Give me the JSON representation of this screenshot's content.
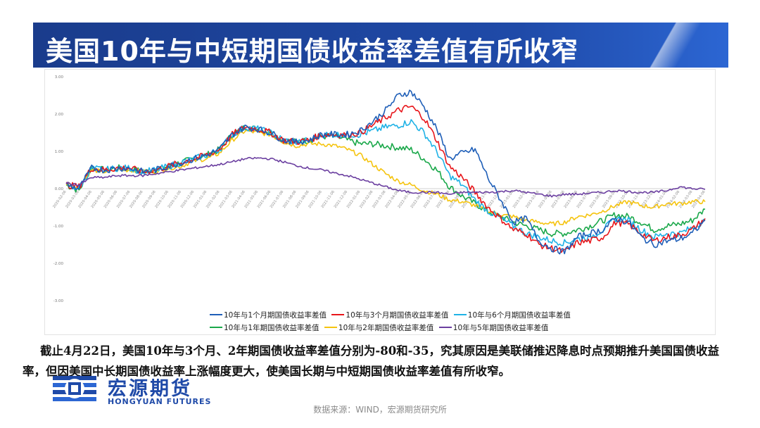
{
  "header": {
    "title": "美国10年与中短期国债收益率差值有所收窄"
  },
  "colors": {
    "title_bar": "#1f4aa8",
    "series": [
      "#1f5fb8",
      "#e8161b",
      "#1fb2e6",
      "#1aa84a",
      "#f5c40f",
      "#6b3fa0"
    ]
  },
  "chart_data": {
    "type": "line",
    "y_ticks": [
      "3.00",
      "2.00",
      "1.00",
      "0.00",
      "-1.00",
      "-2.00",
      "-3.00"
    ],
    "ylim": [
      -3,
      3
    ],
    "x_ticks": [
      "2020-02-06",
      "2020-03-06",
      "2020-04-06",
      "2020-05-06",
      "2020-06-06",
      "2020-07-06",
      "2020-08-06",
      "2020-09-06",
      "2020-10-06",
      "2020-11-06",
      "2020-12-06",
      "2021-01-06",
      "2021-02-06",
      "2021-03-06",
      "2021-04-06",
      "2021-05-06",
      "2021-06-06",
      "2021-07-06",
      "2021-08-06",
      "2021-09-06",
      "2021-10-06",
      "2021-11-06",
      "2021-12-06",
      "2022-01-06",
      "2022-02-06",
      "2022-03-06",
      "2022-04-06",
      "2022-05-06",
      "2022-06-06",
      "2022-07-06",
      "2022-08-06",
      "2022-09-06",
      "2022-10-06",
      "2022-11-06",
      "2022-12-06",
      "2023-01-06",
      "2023-02-06",
      "2023-03-06",
      "2023-04-06",
      "2023-05-06",
      "2023-06-06",
      "2023-07-06",
      "2023-08-06",
      "2023-09-06",
      "2023-10-06",
      "2023-11-06",
      "2023-12-06",
      "2024-01-06",
      "2024-02-06",
      "2024-03-06",
      "2024-04-06"
    ],
    "series": [
      {
        "name": "10年与1个月期国债收益率差值",
        "values": [
          0.1,
          0.0,
          0.55,
          0.5,
          0.55,
          0.55,
          0.45,
          0.5,
          0.6,
          0.7,
          0.8,
          0.9,
          1.05,
          1.45,
          1.65,
          1.6,
          1.5,
          1.3,
          1.25,
          1.3,
          1.45,
          1.45,
          1.45,
          1.55,
          1.8,
          2.1,
          2.5,
          2.6,
          2.2,
          1.6,
          0.8,
          0.95,
          1.05,
          0.3,
          -0.3,
          -0.9,
          -0.8,
          -1.4,
          -1.6,
          -1.7,
          -1.3,
          -1.2,
          -1.1,
          -0.8,
          -0.9,
          -1.3,
          -1.5,
          -1.4,
          -1.35,
          -1.2,
          -0.85
        ]
      },
      {
        "name": "10年与3个月期国债收益率差值",
        "values": [
          0.1,
          0.05,
          0.55,
          0.5,
          0.55,
          0.55,
          0.45,
          0.5,
          0.6,
          0.7,
          0.8,
          0.9,
          1.05,
          1.45,
          1.65,
          1.6,
          1.5,
          1.3,
          1.25,
          1.3,
          1.45,
          1.45,
          1.45,
          1.5,
          1.7,
          1.9,
          2.1,
          2.2,
          1.9,
          1.3,
          0.6,
          0.3,
          -0.1,
          -0.5,
          -0.8,
          -1.1,
          -1.2,
          -1.5,
          -1.6,
          -1.7,
          -1.45,
          -1.4,
          -1.3,
          -0.9,
          -0.95,
          -1.2,
          -1.4,
          -1.3,
          -1.25,
          -1.1,
          -0.8
        ]
      },
      {
        "name": "10年与6个月期国债收益率差值",
        "values": [
          0.1,
          0.0,
          0.55,
          0.5,
          0.55,
          0.55,
          0.45,
          0.5,
          0.6,
          0.7,
          0.8,
          0.9,
          1.05,
          1.45,
          1.65,
          1.6,
          1.5,
          1.3,
          1.25,
          1.3,
          1.45,
          1.45,
          1.45,
          1.45,
          1.55,
          1.65,
          1.7,
          1.8,
          1.5,
          1.0,
          0.35,
          0.1,
          -0.3,
          -0.6,
          -0.8,
          -1.0,
          -1.2,
          -1.3,
          -1.4,
          -1.45,
          -1.35,
          -1.3,
          -1.1,
          -0.8,
          -0.85,
          -1.1,
          -1.3,
          -1.2,
          -1.2,
          -1.05,
          -0.85
        ]
      },
      {
        "name": "10年与1年期国债收益率差值",
        "values": [
          0.1,
          -0.05,
          0.55,
          0.5,
          0.55,
          0.55,
          0.45,
          0.5,
          0.6,
          0.7,
          0.8,
          0.9,
          1.05,
          1.45,
          1.65,
          1.6,
          1.5,
          1.3,
          1.25,
          1.3,
          1.4,
          1.4,
          1.3,
          1.2,
          1.2,
          1.15,
          1.1,
          1.05,
          0.8,
          0.5,
          0.05,
          -0.2,
          -0.4,
          -0.6,
          -0.75,
          -0.9,
          -1.0,
          -1.1,
          -1.2,
          -1.2,
          -1.1,
          -1.0,
          -0.85,
          -0.7,
          -0.75,
          -0.9,
          -1.1,
          -1.0,
          -0.95,
          -0.85,
          -0.55
        ]
      },
      {
        "name": "10年与2年期国债收益率差值",
        "values": [
          0.15,
          0.05,
          0.5,
          0.45,
          0.5,
          0.5,
          0.45,
          0.45,
          0.55,
          0.6,
          0.75,
          0.8,
          0.95,
          1.3,
          1.55,
          1.5,
          1.45,
          1.25,
          1.15,
          1.2,
          1.2,
          1.15,
          1.05,
          0.9,
          0.65,
          0.4,
          0.2,
          0.1,
          -0.05,
          -0.15,
          -0.3,
          -0.35,
          -0.45,
          -0.6,
          -0.7,
          -0.75,
          -0.85,
          -0.9,
          -0.95,
          -0.9,
          -0.75,
          -0.7,
          -0.6,
          -0.45,
          -0.35,
          -0.45,
          -0.5,
          -0.4,
          -0.4,
          -0.35,
          -0.35
        ]
      },
      {
        "name": "10年与5年期国债收益率差值",
        "values": [
          0.15,
          0.1,
          0.3,
          0.3,
          0.35,
          0.35,
          0.35,
          0.4,
          0.45,
          0.5,
          0.55,
          0.6,
          0.65,
          0.72,
          0.8,
          0.82,
          0.8,
          0.72,
          0.62,
          0.55,
          0.5,
          0.42,
          0.35,
          0.25,
          0.15,
          0.05,
          -0.05,
          -0.1,
          -0.1,
          -0.1,
          -0.15,
          -0.1,
          -0.1,
          -0.1,
          -0.08,
          -0.05,
          -0.1,
          -0.15,
          -0.2,
          -0.15,
          -0.15,
          -0.12,
          -0.1,
          -0.05,
          -0.08,
          -0.1,
          -0.1,
          -0.05,
          0.05,
          0.0,
          -0.02
        ]
      }
    ]
  },
  "legend": {
    "items": [
      "10年与1个月期国债收益率差值",
      "10年与3个月期国债收益率差值",
      "10年与6个月期国债收益率差值",
      "10年与1年期国债收益率差值",
      "10年与2年期国债收益率差值",
      "10年与5年期国债收益率差值"
    ]
  },
  "body": {
    "paragraph": "截止4月22日，美国10年与3个月、2年期国债收益率差值分别为-80和-35，究其原因是美联储推迟降息时点预期推升美国国债收益率，但因美国中长期国债收益率上涨幅度更大，使美国长期与中短期国债收益率差值有所收窄。"
  },
  "logo": {
    "cn": "宏源期货",
    "en": "HONGYUAN FUTURES"
  },
  "footer": {
    "source": "数据来源：WIND，宏源期货研究所"
  }
}
